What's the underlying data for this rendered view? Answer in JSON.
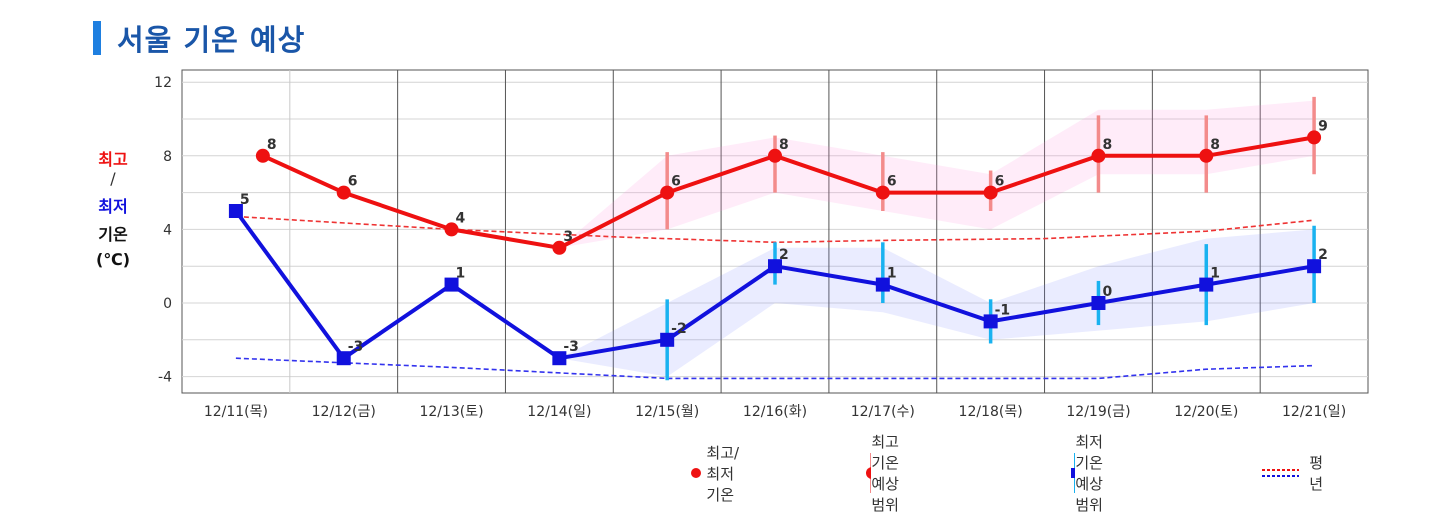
{
  "title": "서울 기온 예상",
  "y_axis_label": {
    "line1": "최고",
    "sep": "/",
    "line2": "최저",
    "line3": "기온",
    "line4": "(℃)"
  },
  "colors": {
    "high": "#ee1111",
    "low": "#1111dd",
    "high_range": "#f38b8b",
    "low_range": "#19b2f0",
    "title_bar": "#1e7fe0",
    "title_text": "#1a56a8"
  },
  "legend": {
    "item1": "최고/최저기온",
    "item2": "최고기온 예상범위",
    "item3": "최저기온 예상범위",
    "item4": "평년"
  },
  "chart_data": {
    "type": "line",
    "categories": [
      "12/11(목)",
      "12/12(금)",
      "12/13(토)",
      "12/14(일)",
      "12/15(월)",
      "12/16(화)",
      "12/17(수)",
      "12/18(목)",
      "12/19(금)",
      "12/20(토)",
      "12/21(일)"
    ],
    "ylim": [
      -5,
      12
    ],
    "yticks": [
      12,
      8,
      4,
      0,
      -4
    ],
    "series": [
      {
        "name": "최고기온",
        "values": [
          8,
          6,
          4,
          3,
          6,
          8,
          6,
          6,
          8,
          8,
          9
        ],
        "labels": [
          "8",
          "6",
          "4",
          "3",
          "6",
          "8",
          "6",
          "6",
          "8",
          "8",
          "9"
        ],
        "start": 0.5
      },
      {
        "name": "최저기온",
        "values": [
          5,
          -3,
          1,
          -3,
          -2,
          2,
          1,
          -1,
          0,
          1,
          2
        ],
        "labels": [
          "5",
          "-3",
          "1",
          "-3",
          "-2",
          "2",
          "1",
          "-1",
          "0",
          "1",
          "2"
        ],
        "start": 0
      }
    ],
    "high_range": [
      {
        "i": 4,
        "lo": 4.0,
        "hi": 8.2
      },
      {
        "i": 5,
        "lo": 6.0,
        "hi": 9.1
      },
      {
        "i": 6,
        "lo": 5.0,
        "hi": 8.2
      },
      {
        "i": 7,
        "lo": 5.0,
        "hi": 7.2
      },
      {
        "i": 8,
        "lo": 6.0,
        "hi": 10.2
      },
      {
        "i": 9,
        "lo": 6.0,
        "hi": 10.2
      },
      {
        "i": 10,
        "lo": 7.0,
        "hi": 11.2
      }
    ],
    "low_range": [
      {
        "i": 4,
        "lo": -4.2,
        "hi": 0.2
      },
      {
        "i": 5,
        "lo": 1.0,
        "hi": 3.3
      },
      {
        "i": 6,
        "lo": 0.0,
        "hi": 3.3
      },
      {
        "i": 7,
        "lo": -2.2,
        "hi": 0.2
      },
      {
        "i": 8,
        "lo": -1.2,
        "hi": 1.2
      },
      {
        "i": 9,
        "lo": -1.2,
        "hi": 3.2
      },
      {
        "i": 10,
        "lo": 0.0,
        "hi": 4.2
      }
    ],
    "high_band_from": 3,
    "high_band": [
      [
        3,
        3
      ],
      [
        4,
        8
      ],
      [
        6,
        9
      ],
      [
        5,
        8
      ],
      [
        4,
        7
      ],
      [
        7,
        10.5
      ],
      [
        7,
        10.5
      ],
      [
        8,
        11
      ]
    ],
    "low_band_from": 3,
    "low_band": [
      [
        -3,
        -3
      ],
      [
        -4,
        0
      ],
      [
        0,
        3
      ],
      [
        -0.5,
        3
      ],
      [
        -2,
        0
      ],
      [
        -1.5,
        2
      ],
      [
        -1,
        3.5
      ],
      [
        0,
        4
      ]
    ],
    "normal_high": {
      "x": [
        0,
        2,
        3.5,
        5,
        6,
        7.5,
        9,
        10
      ],
      "y": [
        4.7,
        4.0,
        3.6,
        3.3,
        3.4,
        3.5,
        3.9,
        4.5
      ]
    },
    "normal_low": {
      "x": [
        0,
        2,
        4,
        6,
        8,
        9,
        10
      ],
      "y": [
        -3.0,
        -3.5,
        -4.1,
        -4.1,
        -4.1,
        -3.6,
        -3.4
      ]
    },
    "grid": true
  }
}
